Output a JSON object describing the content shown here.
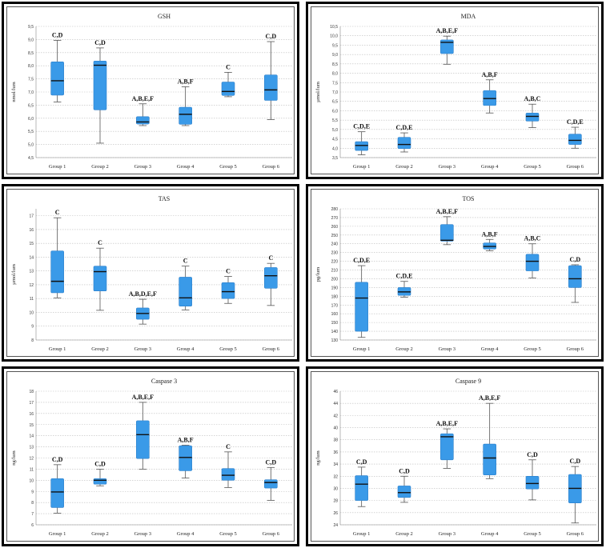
{
  "chart_data": [
    {
      "type": "boxplot",
      "title": "GSH",
      "ylabel": "nmol/lum",
      "ylim": [
        4.5,
        9.5
      ],
      "yticks": [
        "4,5",
        "5,0",
        "5,5",
        "6,0",
        "6,5",
        "7,0",
        "7,5",
        "8,0",
        "8,5",
        "9,0",
        "9,5"
      ],
      "categories": [
        "Group 1",
        "Group 2",
        "Group 3",
        "Group 4",
        "Group 5",
        "Group 6"
      ],
      "boxes": [
        {
          "min": 6.62,
          "q1": 6.88,
          "median": 7.43,
          "q3": 8.15,
          "max": 8.97,
          "label": "C,D"
        },
        {
          "min": 5.05,
          "q1": 6.32,
          "median": 8.02,
          "q3": 8.18,
          "max": 8.68,
          "label": "C,D"
        },
        {
          "min": 5.72,
          "q1": 5.78,
          "median": 5.86,
          "q3": 6.06,
          "max": 6.55,
          "label": "A,B,E,F"
        },
        {
          "min": 5.72,
          "q1": 5.77,
          "median": 6.15,
          "q3": 6.42,
          "max": 7.2,
          "label": "A,B,F"
        },
        {
          "min": 6.82,
          "q1": 6.87,
          "median": 7.02,
          "q3": 7.38,
          "max": 7.75,
          "label": "C"
        },
        {
          "min": 5.95,
          "q1": 6.68,
          "median": 7.08,
          "q3": 7.65,
          "max": 8.92,
          "label": "C,D"
        }
      ]
    },
    {
      "type": "boxplot",
      "title": "MDA",
      "ylabel": "µmol/lum",
      "ylim": [
        3.5,
        10.5
      ],
      "yticks": [
        "3,5",
        "4,0",
        "4,5",
        "5,0",
        "5,5",
        "6,0",
        "6,5",
        "7,0",
        "7,5",
        "8,0",
        "8,5",
        "9,0",
        "9,5",
        "10,0",
        "10,5"
      ],
      "categories": [
        "Group 1",
        "Group 2",
        "Group 3",
        "Group 4",
        "Group 5",
        "Group 6"
      ],
      "boxes": [
        {
          "min": 3.65,
          "q1": 3.88,
          "median": 4.15,
          "q3": 4.35,
          "max": 4.88,
          "label": "C,D,E"
        },
        {
          "min": 3.8,
          "q1": 3.98,
          "median": 4.2,
          "q3": 4.58,
          "max": 4.82,
          "label": "C,D,E"
        },
        {
          "min": 8.48,
          "q1": 9.05,
          "median": 9.65,
          "q3": 9.78,
          "max": 9.98,
          "label": "A,B,E,F"
        },
        {
          "min": 5.88,
          "q1": 6.28,
          "median": 6.65,
          "q3": 7.08,
          "max": 7.65,
          "label": "A,B,F"
        },
        {
          "min": 5.1,
          "q1": 5.45,
          "median": 5.7,
          "q3": 5.88,
          "max": 6.35,
          "label": "A,B,C"
        },
        {
          "min": 4.0,
          "q1": 4.2,
          "median": 4.42,
          "q3": 4.75,
          "max": 5.12,
          "label": "C,D,E"
        }
      ]
    },
    {
      "type": "boxplot",
      "title": "TAS",
      "ylabel": "µmol/lum",
      "ylim": [
        8,
        17.5
      ],
      "yticks": [
        "8",
        "9",
        "10",
        "11",
        "12",
        "13",
        "14",
        "15",
        "16",
        "17"
      ],
      "categories": [
        "Group 1",
        "Group 2",
        "Group 3",
        "Group 4",
        "Group 5",
        "Group 6"
      ],
      "boxes": [
        {
          "min": 11.05,
          "q1": 11.42,
          "median": 12.25,
          "q3": 14.45,
          "max": 16.85,
          "label": "C"
        },
        {
          "min": 10.15,
          "q1": 11.55,
          "median": 12.95,
          "q3": 13.35,
          "max": 14.65,
          "label": "C"
        },
        {
          "min": 9.15,
          "q1": 9.5,
          "median": 9.92,
          "q3": 10.32,
          "max": 10.95,
          "label": "A,B,D,E,F"
        },
        {
          "min": 10.18,
          "q1": 10.45,
          "median": 11.05,
          "q3": 12.55,
          "max": 13.35,
          "label": "C"
        },
        {
          "min": 10.65,
          "q1": 11.0,
          "median": 11.5,
          "q3": 12.15,
          "max": 12.6,
          "label": "C"
        },
        {
          "min": 10.5,
          "q1": 11.75,
          "median": 12.65,
          "q3": 13.25,
          "max": 13.55,
          "label": "C"
        }
      ]
    },
    {
      "type": "boxplot",
      "title": "TOS",
      "ylabel": "pg/lum",
      "ylim": [
        130,
        280
      ],
      "yticks": [
        "130",
        "140",
        "150",
        "160",
        "170",
        "180",
        "190",
        "200",
        "210",
        "220",
        "230",
        "240",
        "250",
        "260",
        "270",
        "280"
      ],
      "categories": [
        "Group 1",
        "Group 2",
        "Group 3",
        "Group 4",
        "Group 5",
        "Group 6"
      ],
      "boxes": [
        {
          "min": 133,
          "q1": 140,
          "median": 178,
          "q3": 196,
          "max": 215,
          "label": "C,D,E"
        },
        {
          "min": 179,
          "q1": 181,
          "median": 185,
          "q3": 190,
          "max": 197,
          "label": "C,D,E"
        },
        {
          "min": 239,
          "q1": 243,
          "median": 244,
          "q3": 262,
          "max": 271,
          "label": "A,B,E,F"
        },
        {
          "min": 232,
          "q1": 234,
          "median": 237,
          "q3": 241,
          "max": 245,
          "label": "A,B,F"
        },
        {
          "min": 201,
          "q1": 209,
          "median": 220,
          "q3": 228,
          "max": 240,
          "label": "A,B,C"
        },
        {
          "min": 173,
          "q1": 190,
          "median": 200,
          "q3": 215,
          "max": 216,
          "label": "C,D"
        }
      ]
    },
    {
      "type": "boxplot",
      "title": "Caspase 3",
      "ylabel": "ng/lum",
      "ylim": [
        6,
        18
      ],
      "yticks": [
        "6",
        "7",
        "8",
        "9",
        "10",
        "11",
        "12",
        "13",
        "14",
        "15",
        "16",
        "17",
        "18"
      ],
      "categories": [
        "Group 1",
        "Group 2",
        "Group 3",
        "Group 4",
        "Group 5",
        "Group 6"
      ],
      "boxes": [
        {
          "min": 7.05,
          "q1": 7.55,
          "median": 8.95,
          "q3": 10.15,
          "max": 11.4,
          "label": "C,D"
        },
        {
          "min": 9.5,
          "q1": 9.65,
          "median": 10.0,
          "q3": 10.15,
          "max": 11.0,
          "label": "C,D"
        },
        {
          "min": 11.0,
          "q1": 11.95,
          "median": 14.1,
          "q3": 15.35,
          "max": 17.0,
          "label": "A,B,E,F"
        },
        {
          "min": 10.2,
          "q1": 10.85,
          "median": 12.05,
          "q3": 13.1,
          "max": 13.15,
          "label": "A,B,F"
        },
        {
          "min": 9.35,
          "q1": 10.0,
          "median": 10.45,
          "q3": 11.05,
          "max": 12.55,
          "label": "C"
        },
        {
          "min": 8.2,
          "q1": 9.3,
          "median": 9.8,
          "q3": 10.05,
          "max": 11.15,
          "label": "C,D"
        }
      ]
    },
    {
      "type": "boxplot",
      "title": "Caspase 9",
      "ylabel": "ng/lum",
      "ylim": [
        24,
        46
      ],
      "yticks": [
        "24",
        "26",
        "28",
        "30",
        "32",
        "34",
        "36",
        "38",
        "40",
        "42",
        "44",
        "46"
      ],
      "categories": [
        "Group 1",
        "Group 2",
        "Group 3",
        "Group 4",
        "Group 5",
        "Group 6"
      ],
      "boxes": [
        {
          "min": 27.0,
          "q1": 28.0,
          "median": 30.7,
          "q3": 32.1,
          "max": 33.5,
          "label": "C,D"
        },
        {
          "min": 27.7,
          "q1": 28.5,
          "median": 29.3,
          "q3": 30.4,
          "max": 32.0,
          "label": "C,D"
        },
        {
          "min": 33.3,
          "q1": 34.7,
          "median": 38.5,
          "q3": 39.0,
          "max": 39.8,
          "label": "A,B,E,F"
        },
        {
          "min": 31.6,
          "q1": 32.2,
          "median": 35.0,
          "q3": 37.3,
          "max": 44.0,
          "label": "A,B,E,F"
        },
        {
          "min": 28.1,
          "q1": 29.9,
          "median": 30.8,
          "q3": 32.0,
          "max": 34.7,
          "label": "C,D"
        },
        {
          "min": 24.3,
          "q1": 27.6,
          "median": 30.0,
          "q3": 32.3,
          "max": 33.6,
          "label": "C,D"
        }
      ]
    }
  ],
  "colors": {
    "box_fill": "#3a9ae8",
    "box_stroke": "#2c7fca",
    "median": "#111111",
    "whisker": "#555555",
    "grid": "#bdbdbd",
    "frame": "#000000"
  }
}
